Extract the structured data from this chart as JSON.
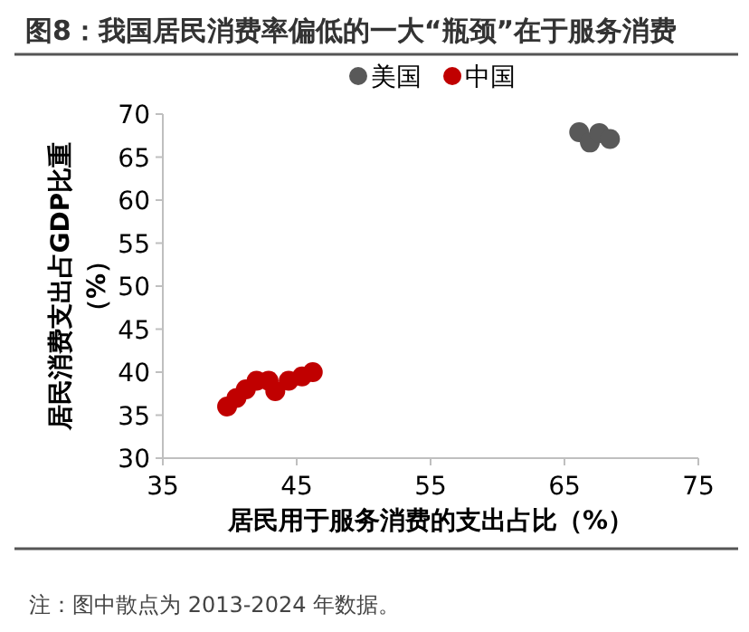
{
  "chart_data": {
    "type": "scatter",
    "title": "图8：我国居民消费率偏低的一大“瓶颈”在于服务消费",
    "xlabel": "居民用于服务消费的支出占比（%）",
    "ylabel": "居民消费支出占GDP比重（%）",
    "annotations": [
      "注：图中散点为 2013-2024 年数据。"
    ],
    "xlim": [
      35,
      75
    ],
    "xticks": [
      35,
      45,
      55,
      65,
      75
    ],
    "ylim": [
      30,
      70
    ],
    "yticks": [
      30,
      35,
      40,
      45,
      50,
      55,
      60,
      65,
      70
    ],
    "legend": "top",
    "marker": "circle",
    "grid": false,
    "series": [
      {
        "name": "美国",
        "color": "#595959",
        "x": [
          66.1,
          66.9,
          67.6,
          68.4
        ],
        "values": [
          67.9,
          66.7,
          67.8,
          67.1
        ]
      },
      {
        "name": "中国",
        "color": "#c00000",
        "x": [
          39.8,
          40.5,
          41.2,
          42,
          42.9,
          43.4,
          44.4,
          45.4,
          46.2
        ],
        "values": [
          36,
          37,
          38,
          39,
          39,
          37.8,
          39,
          39.5,
          40
        ]
      }
    ]
  }
}
